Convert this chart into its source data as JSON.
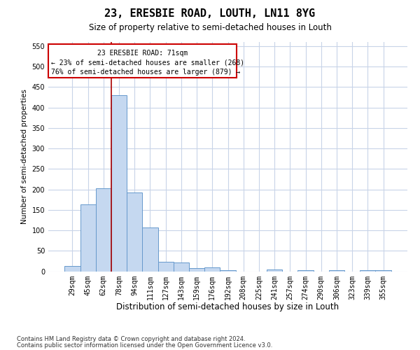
{
  "title": "23, ERESBIE ROAD, LOUTH, LN11 8YG",
  "subtitle": "Size of property relative to semi-detached houses in Louth",
  "xlabel": "Distribution of semi-detached houses by size in Louth",
  "ylabel": "Number of semi-detached properties",
  "categories": [
    "29sqm",
    "45sqm",
    "62sqm",
    "78sqm",
    "94sqm",
    "111sqm",
    "127sqm",
    "143sqm",
    "159sqm",
    "176sqm",
    "192sqm",
    "208sqm",
    "225sqm",
    "241sqm",
    "257sqm",
    "274sqm",
    "290sqm",
    "306sqm",
    "323sqm",
    "339sqm",
    "355sqm"
  ],
  "values": [
    13,
    163,
    203,
    430,
    193,
    107,
    23,
    22,
    8,
    10,
    2,
    0,
    0,
    4,
    0,
    2,
    0,
    3,
    0,
    3,
    2
  ],
  "bar_color": "#c5d8f0",
  "bar_edge_color": "#6699cc",
  "bar_linewidth": 0.7,
  "vline_color": "#aa0000",
  "vline_x_index": 3,
  "property_label": "23 ERESBIE ROAD: 71sqm",
  "smaller_text": "← 23% of semi-detached houses are smaller (268)",
  "larger_text": "76% of semi-detached houses are larger (879) →",
  "ylim": [
    0,
    560
  ],
  "yticks": [
    0,
    50,
    100,
    150,
    200,
    250,
    300,
    350,
    400,
    450,
    500,
    550
  ],
  "footnote1": "Contains HM Land Registry data © Crown copyright and database right 2024.",
  "footnote2": "Contains public sector information licensed under the Open Government Licence v3.0.",
  "bg_color": "#ffffff",
  "grid_color": "#c8d4e8",
  "ann_edge_color": "#cc0000",
  "title_fontsize": 11,
  "subtitle_fontsize": 8.5,
  "ylabel_fontsize": 7.5,
  "xlabel_fontsize": 8.5,
  "tick_fontsize": 7,
  "ann_label_fontsize": 7,
  "footnote_fontsize": 6
}
